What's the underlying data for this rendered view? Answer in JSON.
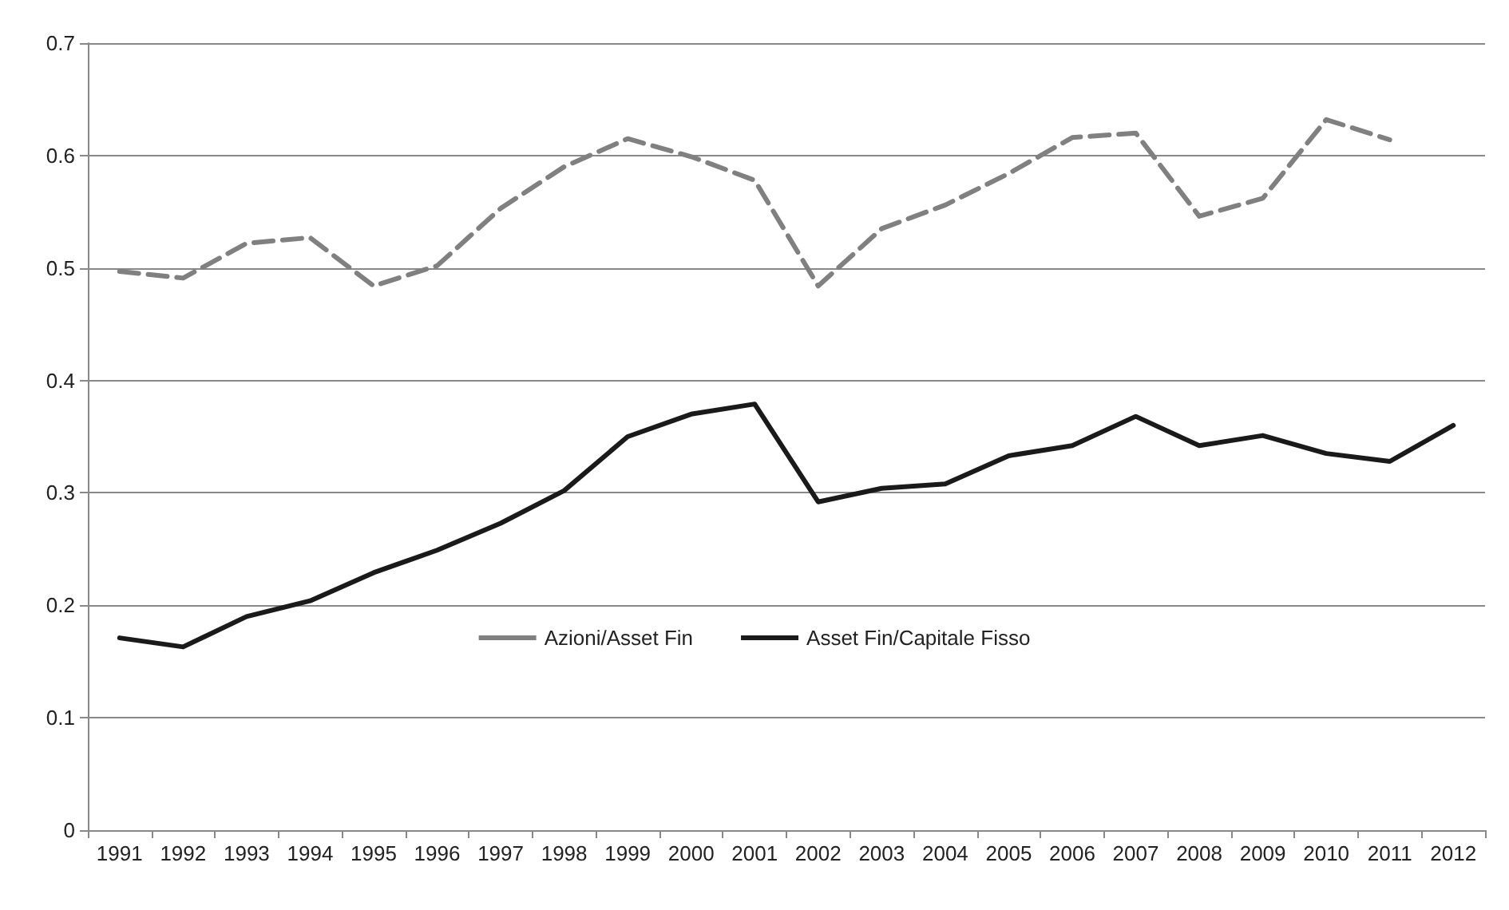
{
  "chart_data": {
    "type": "line",
    "categories": [
      "1991",
      "1992",
      "1993",
      "1994",
      "1995",
      "1996",
      "1997",
      "1998",
      "1999",
      "2000",
      "2001",
      "2002",
      "2003",
      "2004",
      "2005",
      "2006",
      "2007",
      "2008",
      "2009",
      "2010",
      "2011",
      "2012"
    ],
    "series": [
      {
        "name": "Azioni/Asset Fin",
        "color": "#808080",
        "line_style": "dashed",
        "values": [
          0.497,
          0.491,
          0.522,
          0.527,
          0.484,
          0.502,
          0.553,
          0.59,
          0.615,
          0.599,
          0.578,
          0.484,
          0.535,
          0.556,
          0.584,
          0.616,
          0.62,
          0.546,
          0.562,
          0.632,
          0.614,
          null
        ]
      },
      {
        "name": "Asset Fin/Capitale Fisso",
        "color": "#1a1a1a",
        "line_style": "solid",
        "values": [
          0.171,
          0.163,
          0.19,
          0.204,
          0.229,
          0.249,
          0.273,
          0.302,
          0.35,
          0.37,
          0.379,
          0.292,
          0.304,
          0.308,
          0.333,
          0.342,
          0.368,
          0.342,
          0.351,
          0.335,
          0.328,
          0.36
        ]
      }
    ],
    "ylim": [
      0,
      0.7
    ],
    "yticks": [
      0,
      0.1,
      0.2,
      0.3,
      0.4,
      0.5,
      0.6,
      0.7
    ],
    "grid": "y",
    "legend": "bottom",
    "marker": "none"
  }
}
